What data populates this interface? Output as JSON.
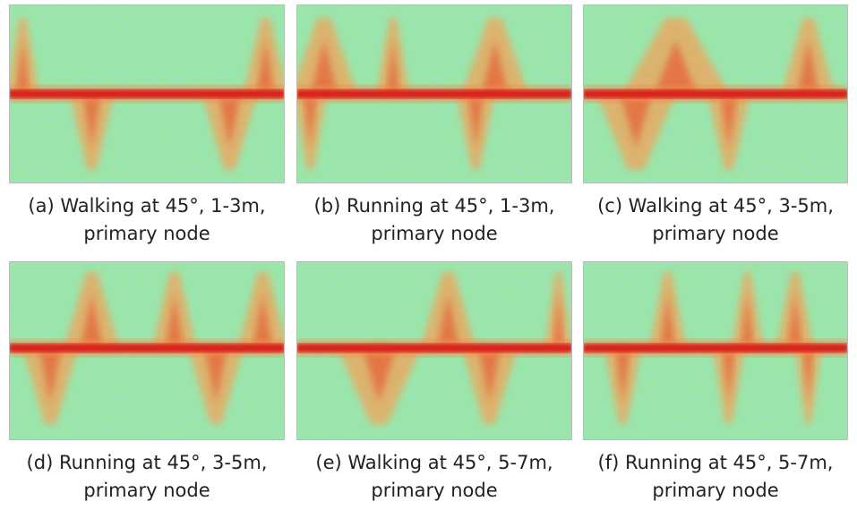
{
  "panels": [
    {
      "caption": [
        "(a) Walking at 45°, 1-3m,",
        "primary node"
      ]
    },
    {
      "caption": [
        "(b) Running at 45°, 1-3m,",
        "primary node"
      ]
    },
    {
      "caption": [
        "(c) Walking at 45°, 3-5m,",
        "primary node"
      ]
    },
    {
      "caption": [
        "(d) Running at 45°, 3-5m,",
        "primary node"
      ]
    },
    {
      "caption": [
        "(e) Walking at 45°, 5-7m,",
        "primary node"
      ]
    },
    {
      "caption": [
        "(f) Running at 45°, 5-7m,",
        "primary node"
      ]
    }
  ]
}
